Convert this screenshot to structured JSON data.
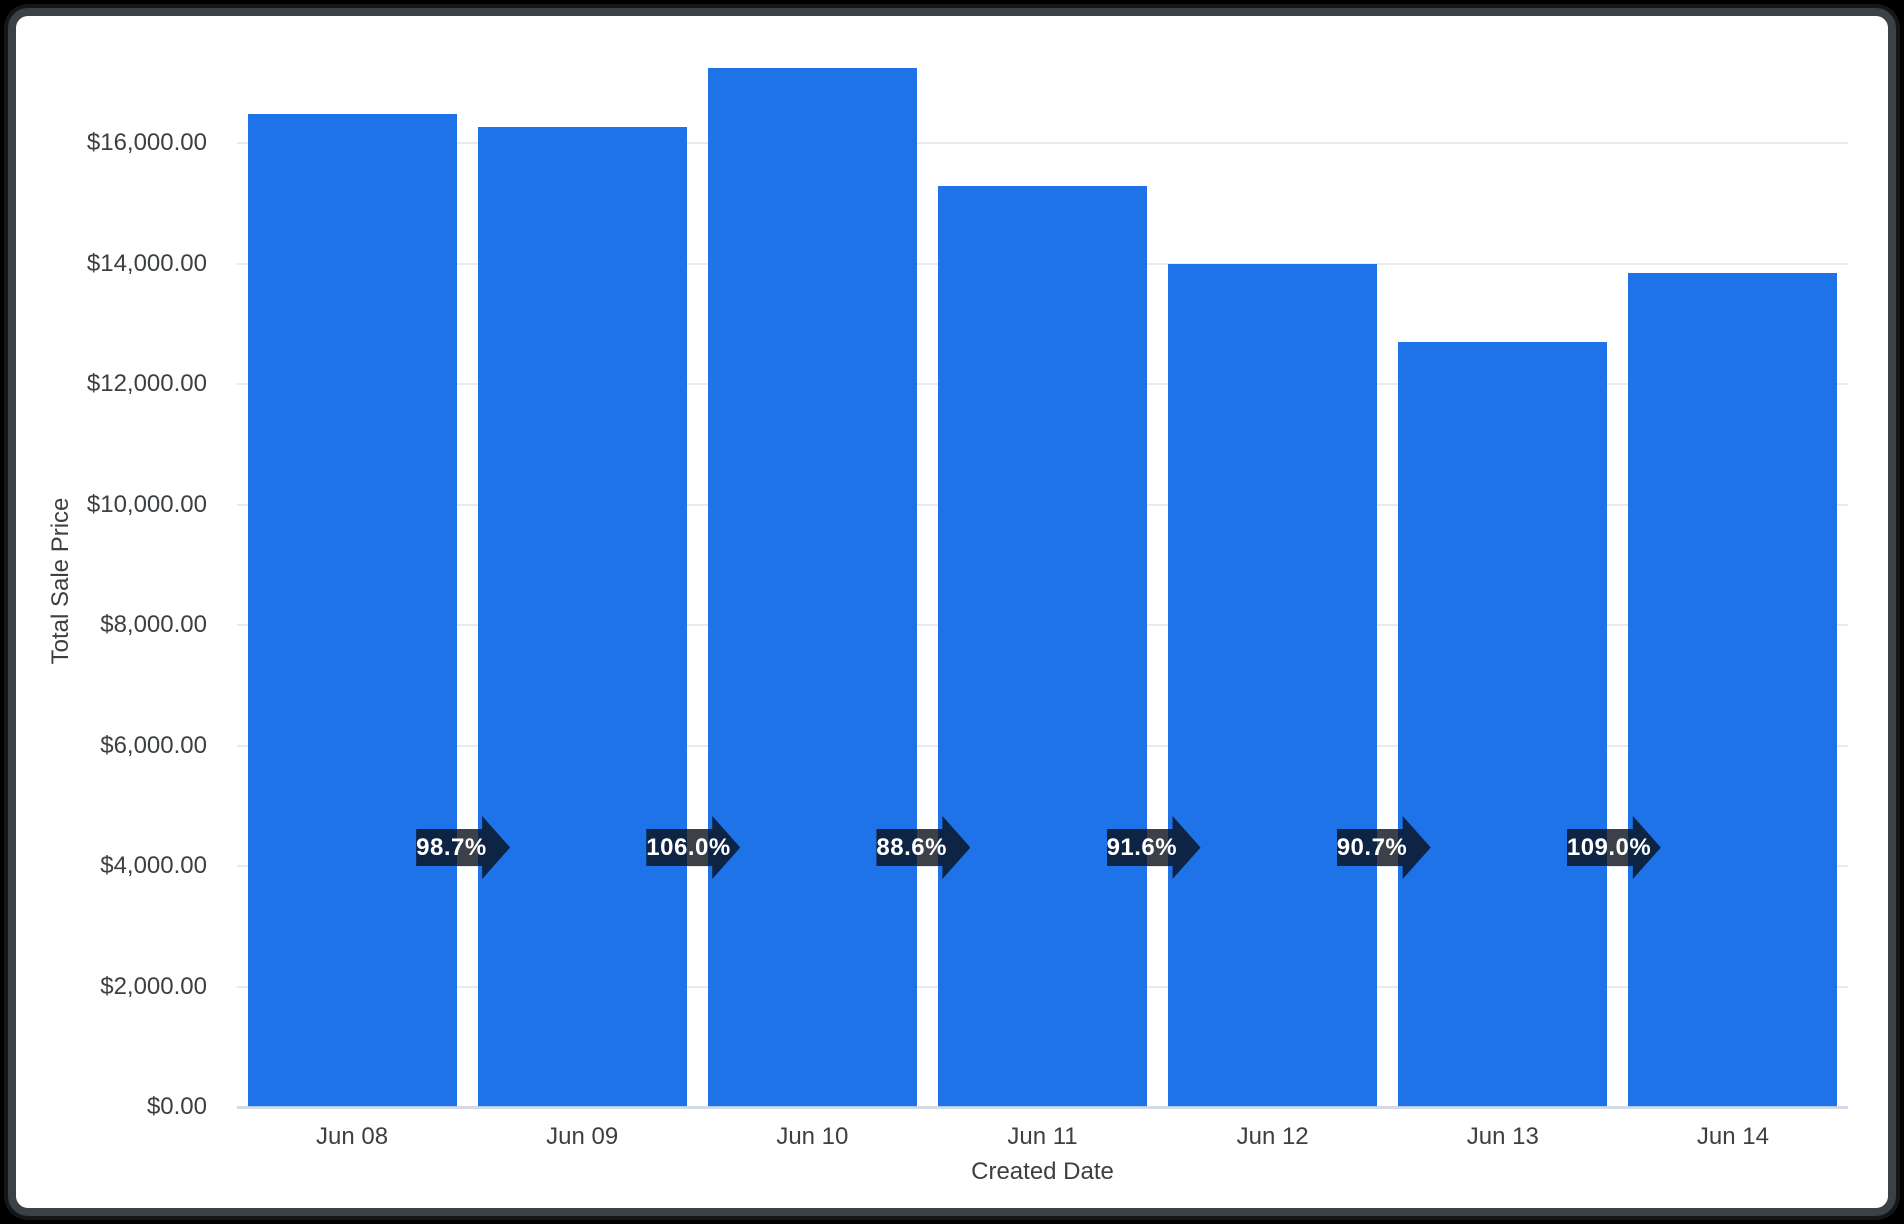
{
  "window": {
    "background": "#000000",
    "frame_border_color": "#3c4147",
    "surface_color": "#ffffff"
  },
  "chart_data": {
    "type": "bar",
    "title": "",
    "xlabel": "Created Date",
    "ylabel": "Total Sale Price",
    "categories": [
      "Jun 08",
      "Jun 09",
      "Jun 10",
      "Jun 11",
      "Jun 12",
      "Jun 13",
      "Jun 14"
    ],
    "values": [
      16480,
      16270,
      17240,
      15280,
      14000,
      12700,
      13840
    ],
    "yticks": [
      0,
      2000,
      4000,
      6000,
      8000,
      10000,
      12000,
      14000,
      16000
    ],
    "ytick_labels": [
      "$0.00",
      "$2,000.00",
      "$4,000.00",
      "$6,000.00",
      "$8,000.00",
      "$10,000.00",
      "$12,000.00",
      "$14,000.00",
      "$16,000.00"
    ],
    "ylim": [
      0,
      18000
    ],
    "grid": "horizontal",
    "legend": "none",
    "bar_color": "#1e73e8",
    "growth_badges": {
      "shape": "right-arrow",
      "bg_color": "rgba(10,16,28,0.8)",
      "text_color": "#ffffff",
      "values": [
        "98.7%",
        "106.0%",
        "88.6%",
        "91.6%",
        "90.7%",
        "109.0%"
      ]
    }
  },
  "axis_style": {
    "text_color": "#3c4043",
    "grid_color": "#eaeaea",
    "baseline_color": "rgba(205,213,228,0.85)"
  }
}
